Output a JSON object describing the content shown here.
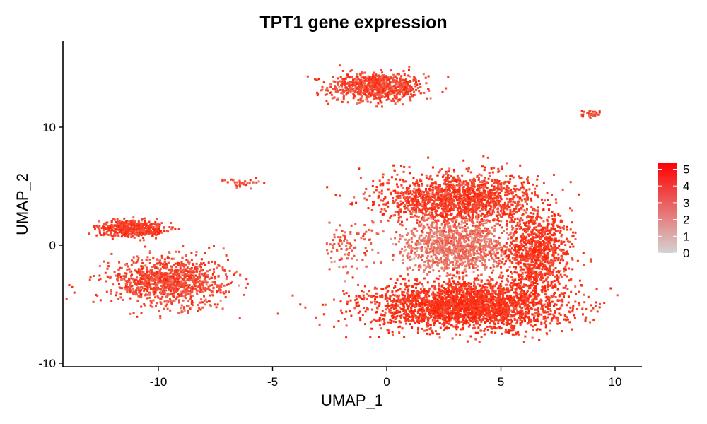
{
  "chart_data": {
    "type": "scatter",
    "title": "TPT1 gene expression",
    "xlabel": "UMAP_1",
    "ylabel": "UMAP_2",
    "xlim": [
      -14,
      11
    ],
    "ylim": [
      -10.5,
      17
    ],
    "xticks": [
      -10,
      -5,
      0,
      5,
      10
    ],
    "yticks": [
      -10,
      0,
      10
    ],
    "xtick_labels": [
      "-10",
      "-5",
      "0",
      "5",
      "10"
    ],
    "ytick_labels": [
      "-10",
      "0",
      "10"
    ],
    "grid": false,
    "legend": {
      "position": "right",
      "type": "colorbar",
      "ticks": [
        0,
        1,
        2,
        3,
        4,
        5
      ],
      "tick_labels": [
        "0",
        "1",
        "2",
        "3",
        "4",
        "5"
      ],
      "low_color": "#d3d3d3",
      "high_color": "#ff0000"
    },
    "clusters": [
      {
        "name_hint": "upper",
        "center": [
          -0.5,
          13.5
        ],
        "spread": [
          1.9,
          1.1
        ],
        "weight": 0.09,
        "expr": 4.0
      },
      {
        "name_hint": "small-right",
        "center": [
          8.9,
          11.2
        ],
        "spread": [
          0.35,
          0.3
        ],
        "weight": 0.004,
        "expr": 4.2
      },
      {
        "name_hint": "thin-strand",
        "center": [
          -6.3,
          5.4
        ],
        "spread": [
          0.7,
          0.35
        ],
        "weight": 0.004,
        "expr": 3.8
      },
      {
        "name_hint": "left-upper",
        "center": [
          -11.2,
          1.5
        ],
        "spread": [
          1.3,
          0.6
        ],
        "weight": 0.06,
        "expr": 4.2
      },
      {
        "name_hint": "left-lower",
        "center": [
          -9.5,
          -3.0
        ],
        "spread": [
          2.3,
          1.8
        ],
        "weight": 0.12,
        "expr": 3.8
      },
      {
        "name_hint": "center-streak",
        "center": [
          -1.8,
          0.0
        ],
        "spread": [
          1.0,
          1.8
        ],
        "weight": 0.01,
        "expr": 3.3
      },
      {
        "name_hint": "big-upper",
        "center": [
          3.0,
          4.0
        ],
        "spread": [
          3.0,
          2.0
        ],
        "weight": 0.18,
        "expr": 4.3
      },
      {
        "name_hint": "big-middle",
        "center": [
          3.0,
          0.0
        ],
        "spread": [
          2.2,
          2.0
        ],
        "weight": 0.12,
        "expr": 2.5
      },
      {
        "name_hint": "big-lower",
        "center": [
          3.5,
          -5.0
        ],
        "spread": [
          3.8,
          1.8
        ],
        "weight": 0.3,
        "expr": 4.6
      },
      {
        "name_hint": "big-right",
        "center": [
          6.5,
          -0.5
        ],
        "spread": [
          1.3,
          3.5
        ],
        "weight": 0.11,
        "expr": 4.5
      }
    ]
  }
}
